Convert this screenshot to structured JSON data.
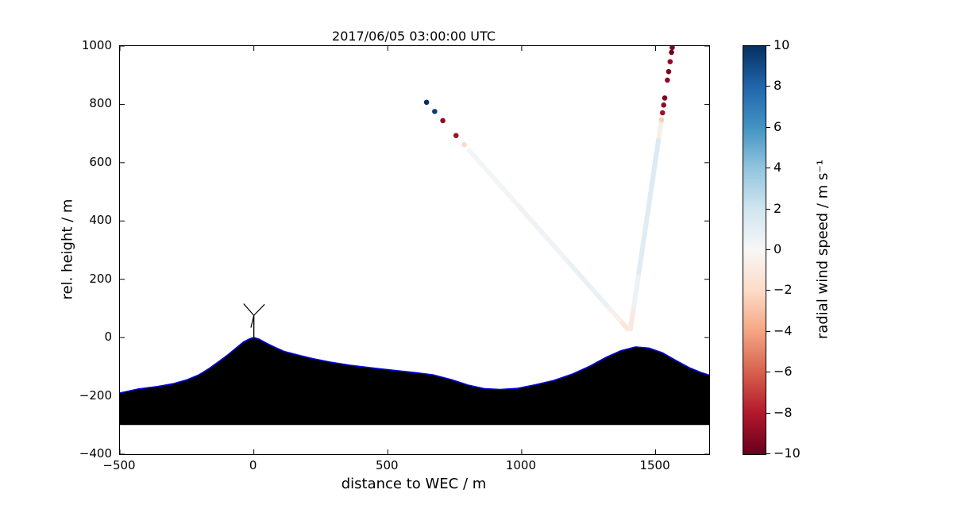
{
  "chart_data": {
    "type": "scatter",
    "title": "2017/06/05 03:00:00 UTC",
    "xlabel": "distance to WEC / m",
    "ylabel": "rel. height / m",
    "xlim": [
      -500,
      1700
    ],
    "ylim": [
      -400,
      1000
    ],
    "xticks": [
      -500,
      0,
      500,
      1000,
      1500
    ],
    "yticks": [
      -400,
      -200,
      0,
      200,
      400,
      600,
      800,
      1000
    ],
    "grid": false,
    "colorbar": {
      "label": "radial wind speed / m s⁻¹",
      "ticks": [
        10,
        8,
        6,
        4,
        2,
        0,
        -2,
        -4,
        -6,
        -8,
        -10
      ],
      "vmin": -10,
      "vmax": 10,
      "colormap": "RdBu",
      "stops": [
        "#67001f",
        "#b2182b",
        "#d6604d",
        "#f4a582",
        "#fddbc7",
        "#f7f7f7",
        "#d1e5f0",
        "#92c5de",
        "#4393c3",
        "#2166ac",
        "#053061"
      ]
    },
    "terrain": {
      "fill": "#000000",
      "outline": "#0000dd",
      "base": -300,
      "points": [
        [
          -500,
          -190
        ],
        [
          -430,
          -176
        ],
        [
          -360,
          -168
        ],
        [
          -300,
          -158
        ],
        [
          -250,
          -145
        ],
        [
          -205,
          -128
        ],
        [
          -165,
          -105
        ],
        [
          -130,
          -82
        ],
        [
          -95,
          -58
        ],
        [
          -65,
          -35
        ],
        [
          -38,
          -15
        ],
        [
          -15,
          -4
        ],
        [
          0,
          0
        ],
        [
          20,
          -6
        ],
        [
          45,
          -18
        ],
        [
          75,
          -32
        ],
        [
          115,
          -48
        ],
        [
          165,
          -60
        ],
        [
          220,
          -72
        ],
        [
          285,
          -84
        ],
        [
          360,
          -95
        ],
        [
          440,
          -104
        ],
        [
          520,
          -112
        ],
        [
          600,
          -120
        ],
        [
          670,
          -128
        ],
        [
          740,
          -145
        ],
        [
          800,
          -163
        ],
        [
          860,
          -175
        ],
        [
          920,
          -178
        ],
        [
          985,
          -174
        ],
        [
          1050,
          -162
        ],
        [
          1120,
          -147
        ],
        [
          1190,
          -125
        ],
        [
          1255,
          -98
        ],
        [
          1315,
          -68
        ],
        [
          1370,
          -45
        ],
        [
          1425,
          -32
        ],
        [
          1475,
          -36
        ],
        [
          1525,
          -52
        ],
        [
          1575,
          -78
        ],
        [
          1625,
          -103
        ],
        [
          1670,
          -120
        ],
        [
          1700,
          -129
        ]
      ]
    },
    "turbine": {
      "x": 0,
      "base_height": 0,
      "hub_height": 76,
      "blade_tips": [
        [
          -38,
          116
        ],
        [
          40,
          114
        ],
        [
          -11,
          34
        ]
      ],
      "color": "#000000"
    },
    "beams": [
      {
        "name": "lidar-beam-diagonal",
        "start": [
          1400,
          25
        ],
        "end": [
          641,
          811
        ],
        "body": [
          {
            "f0": 0.0,
            "f1": 0.04,
            "v": -1.2
          },
          {
            "f0": 0.04,
            "f1": 0.1,
            "v": -0.5
          },
          {
            "f0": 0.1,
            "f1": 0.3,
            "v": 0.7
          },
          {
            "f0": 0.3,
            "f1": 0.55,
            "v": 0.4
          },
          {
            "f0": 0.55,
            "f1": 0.79,
            "v": 0.25
          }
        ],
        "dots": [
          {
            "f": 0.81,
            "v": -2.0
          },
          {
            "f": 0.85,
            "v": -8.5
          },
          {
            "f": 0.915,
            "v": -9.0
          },
          {
            "f": 0.955,
            "v": 9.5
          },
          {
            "f": 0.995,
            "v": 10.0
          }
        ]
      },
      {
        "name": "lidar-beam-steep",
        "start": [
          1405,
          22
        ],
        "end": [
          1562,
          995
        ],
        "body": [
          {
            "f0": 0.0,
            "f1": 0.08,
            "v": -1.0
          },
          {
            "f0": 0.08,
            "f1": 0.2,
            "v": 0.6
          },
          {
            "f0": 0.2,
            "f1": 0.5,
            "v": 1.2
          },
          {
            "f0": 0.5,
            "f1": 0.68,
            "v": 1.4
          },
          {
            "f0": 0.68,
            "f1": 0.74,
            "v": -0.6
          }
        ],
        "dots": [
          {
            "f": 0.745,
            "v": -2.5
          },
          {
            "f": 0.77,
            "v": -8.5
          },
          {
            "f": 0.797,
            "v": -9.0
          },
          {
            "f": 0.822,
            "v": -9.5
          },
          {
            "f": 0.885,
            "v": -9.0
          },
          {
            "f": 0.915,
            "v": -9.5
          },
          {
            "f": 0.95,
            "v": -9.0
          },
          {
            "f": 0.983,
            "v": -10.0
          },
          {
            "f": 1.0,
            "v": -9.5
          }
        ]
      }
    ]
  }
}
